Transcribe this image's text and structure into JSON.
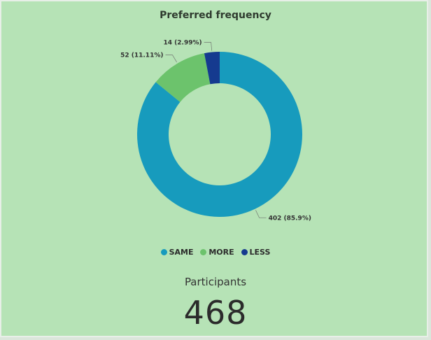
{
  "chart_data": {
    "type": "pie",
    "title": "Preferred frequency",
    "categories": [
      "SAME",
      "MORE",
      "LESS"
    ],
    "values": [
      402,
      52,
      14
    ],
    "data_labels": [
      "402 (85.9%)",
      "52 (11.11%)",
      "14 (2.99%)"
    ],
    "legend_position": "bottom",
    "donut": true
  },
  "colors": {
    "SAME": "#179bbd",
    "MORE": "#6cc36c",
    "LESS": "#153a8f",
    "background": "#b6e3b6"
  },
  "kpi": {
    "label": "Participants",
    "value": "468"
  }
}
